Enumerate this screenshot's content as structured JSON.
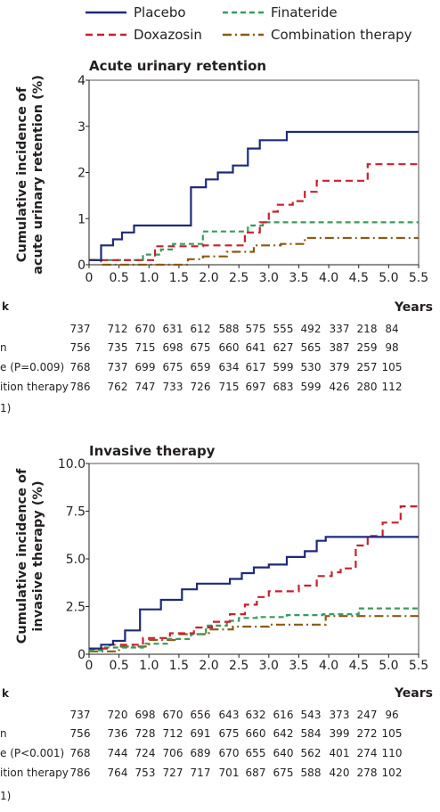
{
  "legend": [
    {
      "label": "Placebo",
      "color": "#1f2a78",
      "dash": ""
    },
    {
      "label": "Finateride",
      "color": "#3a9a5c",
      "dash": "6,4"
    },
    {
      "label": "Doxazosin",
      "color": "#c8202f",
      "dash": "8,5"
    },
    {
      "label": "Combination therapy",
      "color": "#8a5a12",
      "dash": "10,4,2,4"
    }
  ],
  "chart_data": [
    {
      "type": "line",
      "title": "Acute urinary retention",
      "ylabel": "Cumulative incidence of acute urinary retention (%)",
      "ylabel_lines": [
        "Cumulative incidence of",
        "acute urinary retention (%)"
      ],
      "xlabel": "Years",
      "xlim": [
        0,
        5.5
      ],
      "ylim": [
        0,
        4
      ],
      "xticks": [
        "0",
        "0.5",
        "1.0",
        "1.5",
        "2.0",
        "2.5",
        "3.0",
        "3.5",
        "4.0",
        "4.5",
        "5.0",
        "5.5"
      ],
      "yticks": [
        "0",
        "1",
        "2",
        "3",
        "4"
      ],
      "series": [
        {
          "name": "Placebo",
          "x": [
            0,
            0.2,
            0.2,
            0.4,
            0.4,
            0.55,
            0.55,
            0.75,
            0.75,
            1.7,
            1.7,
            1.95,
            1.95,
            2.15,
            2.15,
            2.4,
            2.4,
            2.65,
            2.65,
            2.85,
            2.85,
            3.3,
            3.3,
            5.5
          ],
          "y": [
            0.1,
            0.1,
            0.42,
            0.42,
            0.55,
            0.55,
            0.7,
            0.7,
            0.85,
            0.85,
            1.68,
            1.68,
            1.85,
            1.85,
            2.0,
            2.0,
            2.15,
            2.15,
            2.52,
            2.52,
            2.7,
            2.7,
            2.88,
            2.88
          ]
        },
        {
          "name": "Finateride",
          "x": [
            0,
            0.9,
            0.9,
            1.2,
            1.2,
            1.4,
            1.4,
            1.9,
            1.9,
            2.65,
            2.65,
            2.9,
            2.9,
            5.5
          ],
          "y": [
            0.1,
            0.1,
            0.22,
            0.22,
            0.33,
            0.33,
            0.45,
            0.45,
            0.72,
            0.72,
            0.85,
            0.85,
            0.92,
            0.92
          ]
        },
        {
          "name": "Doxazosin",
          "x": [
            0,
            1.1,
            1.1,
            1.9,
            1.9,
            2.6,
            2.6,
            2.85,
            2.85,
            3.0,
            3.0,
            3.15,
            3.15,
            3.4,
            3.4,
            3.6,
            3.6,
            3.8,
            3.8,
            4.0,
            4.0,
            4.65,
            4.65,
            5.5
          ],
          "y": [
            0.1,
            0.1,
            0.4,
            0.4,
            0.42,
            0.42,
            0.7,
            0.7,
            0.92,
            0.92,
            1.15,
            1.15,
            1.3,
            1.3,
            1.38,
            1.38,
            1.58,
            1.58,
            1.82,
            1.82,
            1.82,
            1.82,
            2.18,
            2.18
          ]
        },
        {
          "name": "Combination therapy",
          "x": [
            0,
            0.2,
            0.2,
            1.65,
            1.65,
            1.9,
            1.9,
            2.3,
            2.3,
            2.75,
            2.75,
            3.2,
            3.2,
            3.6,
            3.6,
            5.5
          ],
          "y": [
            0.1,
            0.1,
            0.0,
            0.0,
            0.12,
            0.12,
            0.18,
            0.18,
            0.28,
            0.28,
            0.42,
            0.42,
            0.45,
            0.45,
            0.58,
            0.58
          ]
        }
      ],
      "risk_header": "k",
      "risk_years_label": "Years",
      "risk_table": [
        {
          "label": "",
          "values": [
            "737",
            "712",
            "670",
            "631",
            "612",
            "588",
            "575",
            "555",
            "492",
            "337",
            "218",
            "84"
          ]
        },
        {
          "label": "n",
          "values": [
            "756",
            "735",
            "715",
            "698",
            "675",
            "660",
            "641",
            "627",
            "565",
            "387",
            "259",
            "98"
          ]
        },
        {
          "label": "e (P=0.009)",
          "values": [
            "768",
            "737",
            "699",
            "675",
            "659",
            "634",
            "617",
            "599",
            "530",
            "379",
            "257",
            "105"
          ]
        },
        {
          "label": "ition therapy",
          "values": [
            "786",
            "762",
            "747",
            "733",
            "726",
            "715",
            "697",
            "683",
            "599",
            "426",
            "280",
            "112"
          ]
        }
      ],
      "footnote": "1)"
    },
    {
      "type": "line",
      "title": "Invasive therapy",
      "ylabel": "Cumulative incidence of invasive therapy (%)",
      "ylabel_lines": [
        "Cumulative incidence of",
        "invasive therapy (%)"
      ],
      "xlabel": "Years",
      "xlim": [
        0,
        5.5
      ],
      "ylim": [
        0,
        10
      ],
      "xticks": [
        "0",
        "0.5",
        "1.0",
        "1.5",
        "2.0",
        "2.5",
        "3.0",
        "3.5",
        "4.0",
        "4.5",
        "5.0",
        "5.5"
      ],
      "yticks": [
        "0",
        "2.5",
        "5.0",
        "7.5",
        "10.0"
      ],
      "series": [
        {
          "name": "Placebo",
          "x": [
            0,
            0.2,
            0.2,
            0.4,
            0.4,
            0.6,
            0.6,
            0.85,
            0.85,
            1.2,
            1.2,
            1.55,
            1.55,
            1.8,
            1.8,
            2.35,
            2.35,
            2.55,
            2.55,
            2.75,
            2.75,
            3.0,
            3.0,
            3.3,
            3.3,
            3.6,
            3.6,
            3.8,
            3.8,
            3.95,
            3.95,
            5.5
          ],
          "y": [
            0.3,
            0.3,
            0.5,
            0.5,
            0.7,
            0.7,
            1.25,
            1.25,
            2.35,
            2.35,
            2.85,
            2.85,
            3.4,
            3.4,
            3.7,
            3.7,
            3.95,
            3.95,
            4.25,
            4.25,
            4.55,
            4.55,
            4.7,
            4.7,
            5.1,
            5.1,
            5.4,
            5.4,
            5.95,
            5.95,
            6.15,
            6.15
          ],
          "rev": true
        },
        {
          "name": "Finateride",
          "x": [
            0,
            0.25,
            0.25,
            0.9,
            0.9,
            1.3,
            1.3,
            1.7,
            1.7,
            1.95,
            1.95,
            2.3,
            2.3,
            2.5,
            2.5,
            2.8,
            2.8,
            3.3,
            3.3,
            3.9,
            3.9,
            4.5,
            4.5,
            5.5
          ],
          "y": [
            0.2,
            0.2,
            0.35,
            0.35,
            0.55,
            0.55,
            0.8,
            0.8,
            1.05,
            1.05,
            1.5,
            1.5,
            1.75,
            1.75,
            1.9,
            1.9,
            1.95,
            1.95,
            2.05,
            2.05,
            2.1,
            2.1,
            2.4,
            2.4
          ]
        },
        {
          "name": "Doxazosin",
          "x": [
            0,
            0.35,
            0.35,
            0.9,
            0.9,
            1.35,
            1.35,
            1.75,
            1.75,
            2.05,
            2.05,
            2.35,
            2.35,
            2.6,
            2.6,
            2.8,
            2.8,
            3.0,
            3.0,
            3.5,
            3.5,
            3.8,
            3.8,
            4.05,
            4.05,
            4.2,
            4.2,
            4.45,
            4.45,
            4.65,
            4.65,
            4.9,
            4.9,
            5.2,
            5.2,
            5.5
          ],
          "y": [
            0.3,
            0.3,
            0.5,
            0.5,
            0.85,
            0.85,
            1.1,
            1.1,
            1.4,
            1.4,
            1.7,
            1.7,
            2.1,
            2.1,
            2.6,
            2.6,
            3.0,
            3.0,
            3.3,
            3.3,
            3.6,
            3.6,
            4.1,
            4.1,
            4.3,
            4.3,
            4.5,
            4.5,
            5.7,
            5.7,
            6.2,
            6.2,
            6.9,
            6.9,
            7.75,
            7.75
          ]
        },
        {
          "name": "Combination therapy",
          "x": [
            0,
            0.5,
            0.5,
            1.0,
            1.0,
            1.5,
            1.5,
            2.0,
            2.0,
            2.4,
            2.4,
            3.0,
            3.0,
            3.95,
            3.95,
            4.5,
            4.5,
            5.5
          ],
          "y": [
            0.15,
            0.15,
            0.4,
            0.4,
            0.75,
            0.75,
            1.05,
            1.05,
            1.3,
            1.3,
            1.45,
            1.45,
            1.55,
            1.55,
            2.0,
            2.0,
            2.0,
            2.0
          ]
        }
      ],
      "risk_header": "k",
      "risk_years_label": "Years",
      "risk_table": [
        {
          "label": "",
          "values": [
            "737",
            "720",
            "698",
            "670",
            "656",
            "643",
            "632",
            "616",
            "543",
            "373",
            "247",
            "96"
          ]
        },
        {
          "label": "n",
          "values": [
            "756",
            "736",
            "728",
            "712",
            "691",
            "675",
            "660",
            "642",
            "584",
            "399",
            "272",
            "105"
          ]
        },
        {
          "label": "e (P<0.001)",
          "values": [
            "768",
            "744",
            "724",
            "706",
            "689",
            "670",
            "655",
            "640",
            "562",
            "401",
            "274",
            "110"
          ]
        },
        {
          "label": "ition therapy",
          "values": [
            "786",
            "764",
            "753",
            "727",
            "717",
            "701",
            "687",
            "675",
            "588",
            "420",
            "278",
            "102"
          ]
        }
      ],
      "footnote": "1)"
    }
  ]
}
